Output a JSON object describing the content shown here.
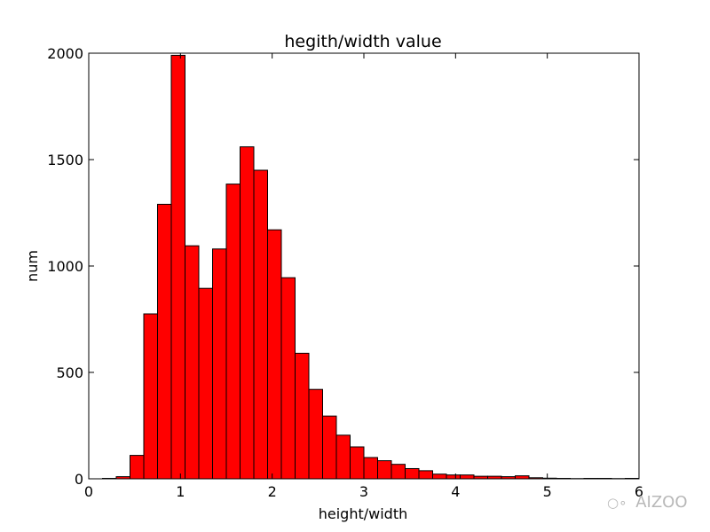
{
  "chart_data": {
    "type": "bar",
    "title": "hegith/width  value",
    "xlabel": "height/width",
    "ylabel": "num",
    "xlim": [
      0,
      6
    ],
    "ylim": [
      0,
      2000
    ],
    "xticks": [
      "0",
      "1",
      "2",
      "3",
      "4",
      "5",
      "6"
    ],
    "yticks": [
      "0",
      "500",
      "1000",
      "1500",
      "2000"
    ],
    "bar_color": "#ff0000",
    "edge_color": "#000000",
    "grid": false,
    "bins": [
      {
        "x0": 0.15,
        "x1": 0.3,
        "value": 2
      },
      {
        "x0": 0.3,
        "x1": 0.45,
        "value": 10
      },
      {
        "x0": 0.45,
        "x1": 0.6,
        "value": 110
      },
      {
        "x0": 0.6,
        "x1": 0.75,
        "value": 775
      },
      {
        "x0": 0.75,
        "x1": 0.9,
        "value": 1290
      },
      {
        "x0": 0.9,
        "x1": 1.05,
        "value": 1990
      },
      {
        "x0": 1.05,
        "x1": 1.2,
        "value": 1095
      },
      {
        "x0": 1.2,
        "x1": 1.35,
        "value": 895
      },
      {
        "x0": 1.35,
        "x1": 1.5,
        "value": 1080
      },
      {
        "x0": 1.5,
        "x1": 1.65,
        "value": 1385
      },
      {
        "x0": 1.65,
        "x1": 1.8,
        "value": 1560
      },
      {
        "x0": 1.8,
        "x1": 1.95,
        "value": 1450
      },
      {
        "x0": 1.95,
        "x1": 2.1,
        "value": 1170
      },
      {
        "x0": 2.1,
        "x1": 2.25,
        "value": 945
      },
      {
        "x0": 2.25,
        "x1": 2.4,
        "value": 590
      },
      {
        "x0": 2.4,
        "x1": 2.55,
        "value": 420
      },
      {
        "x0": 2.55,
        "x1": 2.7,
        "value": 295
      },
      {
        "x0": 2.7,
        "x1": 2.85,
        "value": 205
      },
      {
        "x0": 2.85,
        "x1": 3.0,
        "value": 150
      },
      {
        "x0": 3.0,
        "x1": 3.15,
        "value": 100
      },
      {
        "x0": 3.15,
        "x1": 3.3,
        "value": 85
      },
      {
        "x0": 3.3,
        "x1": 3.45,
        "value": 68
      },
      {
        "x0": 3.45,
        "x1": 3.6,
        "value": 48
      },
      {
        "x0": 3.6,
        "x1": 3.75,
        "value": 38
      },
      {
        "x0": 3.75,
        "x1": 3.9,
        "value": 22
      },
      {
        "x0": 3.9,
        "x1": 4.05,
        "value": 18
      },
      {
        "x0": 4.05,
        "x1": 4.2,
        "value": 18
      },
      {
        "x0": 4.2,
        "x1": 4.35,
        "value": 12
      },
      {
        "x0": 4.35,
        "x1": 4.5,
        "value": 12
      },
      {
        "x0": 4.5,
        "x1": 4.65,
        "value": 10
      },
      {
        "x0": 4.65,
        "x1": 4.8,
        "value": 14
      },
      {
        "x0": 4.8,
        "x1": 4.95,
        "value": 5
      },
      {
        "x0": 4.95,
        "x1": 5.1,
        "value": 3
      },
      {
        "x0": 5.1,
        "x1": 5.25,
        "value": 2
      },
      {
        "x0": 5.25,
        "x1": 5.4,
        "value": 1
      },
      {
        "x0": 5.4,
        "x1": 5.55,
        "value": 2
      },
      {
        "x0": 5.55,
        "x1": 5.7,
        "value": 2
      },
      {
        "x0": 5.7,
        "x1": 5.85,
        "value": 1
      },
      {
        "x0": 5.85,
        "x1": 6.0,
        "value": 2
      }
    ]
  },
  "watermark": {
    "text": "AIZOO",
    "icon": "wechat-icon"
  }
}
